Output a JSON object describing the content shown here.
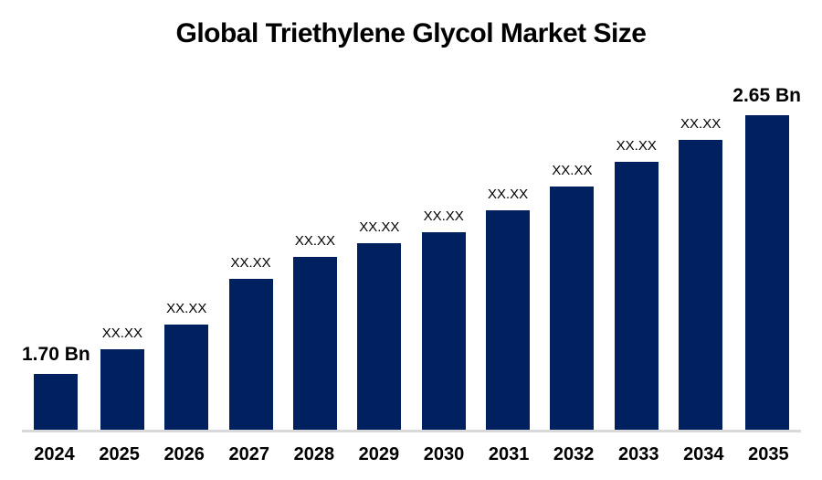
{
  "colors": {
    "bar": "#002060",
    "axis_line": "#d9d9d9",
    "text": "#000000",
    "background": "#ffffff"
  },
  "chart_data": {
    "type": "bar",
    "title": "Global Triethylene Glycol Market Size",
    "categories": [
      "2024",
      "2025",
      "2026",
      "2027",
      "2028",
      "2029",
      "2030",
      "2031",
      "2032",
      "2033",
      "2034",
      "2035"
    ],
    "values": [
      1.7,
      1.79,
      1.88,
      2.05,
      2.13,
      2.18,
      2.22,
      2.3,
      2.39,
      2.48,
      2.56,
      2.65
    ],
    "bar_labels": [
      "1.70 Bn",
      "XX.XX",
      "XX.XX",
      "XX.XX",
      "XX.XX",
      "XX.XX",
      "XX.XX",
      "XX.XX",
      "XX.XX",
      "XX.XX",
      "XX.XX",
      "2.65 Bn"
    ],
    "unit": "Bn",
    "xlabel": "",
    "ylabel": "",
    "ylim": [
      1.495,
      2.805
    ],
    "grid": false,
    "legend": null,
    "axis_labels_visible": false,
    "note": "Only 2024 and 2035 bars show numeric values; intermediate bars are masked as XX.XX. Intermediate numeric values are estimated from bar heights; the bar baseline is non-zero."
  }
}
